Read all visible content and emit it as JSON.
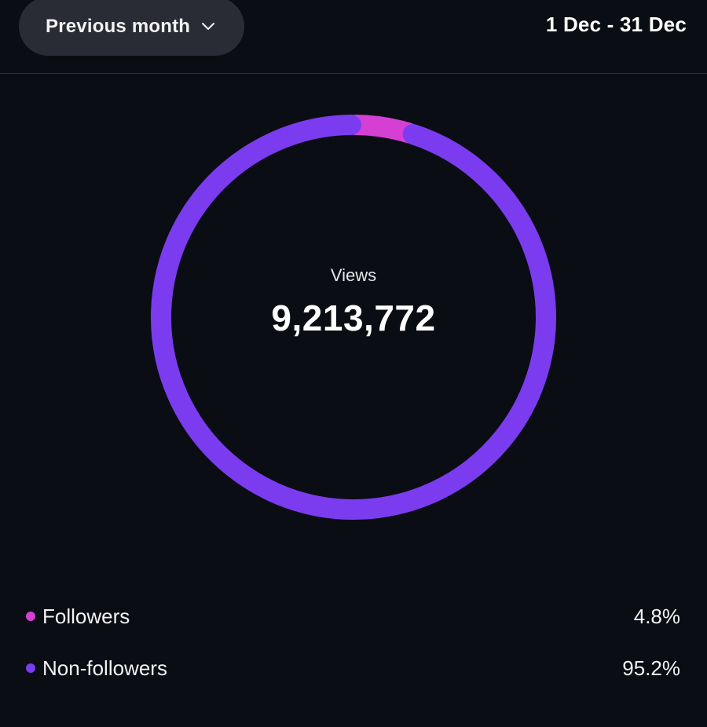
{
  "header": {
    "period_label": "Previous month",
    "date_range": "1 Dec - 31 Dec"
  },
  "center": {
    "label": "Views",
    "value": "9,213,772"
  },
  "colors": {
    "followers": "#d63fd3",
    "non_followers": "#7b3cf0",
    "background": "#0b0d14"
  },
  "chart_data": {
    "type": "pie",
    "categories": [
      "Followers",
      "Non-followers"
    ],
    "values": [
      4.8,
      95.2
    ],
    "value_labels": [
      "4.8%",
      "95.2%"
    ],
    "title": "Views",
    "total": "9,213,772"
  },
  "legend": [
    {
      "label": "Followers",
      "value": "4.8%",
      "color": "#d63fd3"
    },
    {
      "label": "Non-followers",
      "value": "95.2%",
      "color": "#7b3cf0"
    }
  ]
}
